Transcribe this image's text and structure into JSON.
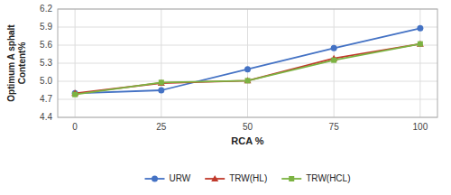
{
  "chart_data": {
    "type": "line",
    "x": [
      0,
      25,
      50,
      75,
      100
    ],
    "xlabel": "RCA %",
    "ylabel": "Optimum A sphalt\nContent%",
    "xlim": [
      -5,
      105
    ],
    "xticks": [
      0,
      25,
      50,
      75,
      100
    ],
    "ylim": [
      4.4,
      6.2
    ],
    "yticks": [
      4.4,
      4.7,
      {
        "value": 5.0,
        "label": "5.0"
      },
      5.3,
      5.6,
      5.9,
      6.2
    ],
    "grid": true,
    "legend": "bottom",
    "series": [
      {
        "name": "URW",
        "color": "#4472C4",
        "marker": "circle",
        "values": [
          4.8,
          4.85,
          5.2,
          5.55,
          5.88
        ]
      },
      {
        "name": "TRW(HL)",
        "color": "#C0392B",
        "marker": "triangle",
        "values": [
          4.8,
          4.97,
          5.01,
          5.38,
          5.62
        ]
      },
      {
        "name": "TRW(HCL)",
        "color": "#7CB342",
        "marker": "square",
        "values": [
          4.78,
          4.98,
          5.01,
          5.35,
          5.62
        ]
      }
    ]
  }
}
